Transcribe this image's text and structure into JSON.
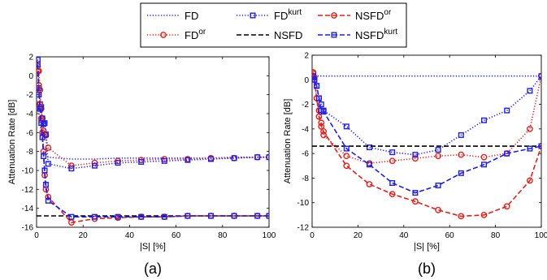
{
  "legend": {
    "items": [
      {
        "key": "fd",
        "base": "FD",
        "sup": "",
        "color": "#1f1fe0"
      },
      {
        "key": "fd_or",
        "base": "FD",
        "sup": "or",
        "color": "#e01f1f"
      },
      {
        "key": "fd_kurt",
        "base": "FD",
        "sup": "kurt",
        "color": "#1f1fe0"
      },
      {
        "key": "nsfd",
        "base": "NSFD",
        "sup": "",
        "color": "#000000"
      },
      {
        "key": "nsfd_or",
        "base": "NSFD",
        "sup": "or",
        "color": "#e01f1f"
      },
      {
        "key": "nsfd_kurt",
        "base": "NSFD",
        "sup": "kurt",
        "color": "#1f1fe0"
      }
    ]
  },
  "chart_data": [
    {
      "type": "line",
      "panel_label": "(a)",
      "xlabel": "|S| [%]",
      "ylabel": "Attenuation Rate [dB]",
      "xlim": [
        0,
        100
      ],
      "ylim": [
        -16,
        2
      ],
      "xticks": [
        0,
        20,
        40,
        60,
        80,
        100
      ],
      "yticks": [
        2,
        0,
        -2,
        -4,
        -6,
        -8,
        -10,
        -12,
        -14,
        -16
      ],
      "grid": false,
      "series": [
        {
          "name": "FD",
          "style": "dotted",
          "marker": "none",
          "color": "#1f1fe0",
          "x": [
            1,
            2,
            3,
            4,
            5,
            15,
            25,
            35,
            45,
            55,
            65,
            75,
            85,
            95,
            100
          ],
          "y": [
            -4.0,
            -6.0,
            -7.5,
            -8.3,
            -8.6,
            -8.8,
            -8.8,
            -8.7,
            -8.7,
            -8.7,
            -8.7,
            -8.7,
            -8.6,
            -8.6,
            -8.6
          ]
        },
        {
          "name": "FD^or",
          "style": "dotted",
          "marker": "circle",
          "color": "#e01f1f",
          "x": [
            0.5,
            1,
            1.5,
            2,
            2.5,
            3,
            3.5,
            4,
            5,
            15,
            25,
            35,
            45,
            55,
            65,
            75,
            85,
            95,
            100
          ],
          "y": [
            1.0,
            0.5,
            -1.5,
            -3.5,
            -4.5,
            -5.8,
            -6.2,
            -6.3,
            -7.6,
            -9.5,
            -9.2,
            -9.0,
            -8.9,
            -8.8,
            -8.8,
            -8.7,
            -8.7,
            -8.6,
            -8.6
          ]
        },
        {
          "name": "FD^kurt",
          "style": "dotted",
          "marker": "square",
          "color": "#1f1fe0",
          "x": [
            0.5,
            1,
            1.5,
            2,
            2.5,
            3,
            3.5,
            4,
            5,
            15,
            25,
            35,
            45,
            55,
            65,
            75,
            85,
            95,
            100
          ],
          "y": [
            1.7,
            -1.3,
            -3.0,
            -3.3,
            -4.5,
            -5.1,
            -5.0,
            -6.2,
            -9.3,
            -9.8,
            -9.5,
            -9.2,
            -9.1,
            -9.0,
            -8.9,
            -8.8,
            -8.7,
            -8.6,
            -8.6
          ]
        },
        {
          "name": "NSFD",
          "style": "dashed",
          "marker": "none",
          "color": "#000000",
          "x": [
            0,
            100
          ],
          "y": [
            -14.8,
            -14.8
          ]
        },
        {
          "name": "NSFD^or",
          "style": "dashed",
          "marker": "circle",
          "color": "#e01f1f",
          "x": [
            0.5,
            1,
            1.5,
            2,
            2.5,
            3,
            3.5,
            4,
            5,
            15,
            25,
            35,
            45,
            55,
            65,
            75,
            85,
            95,
            100
          ],
          "y": [
            0.5,
            -1.0,
            -3.0,
            -4.5,
            -6.0,
            -8.0,
            -10.5,
            -12.0,
            -12.8,
            -15.5,
            -15.1,
            -15.0,
            -14.9,
            -14.9,
            -14.8,
            -14.8,
            -14.8,
            -14.8,
            -14.8
          ]
        },
        {
          "name": "NSFD^kurt",
          "style": "dashed",
          "marker": "square",
          "color": "#1f1fe0",
          "x": [
            0.5,
            1,
            1.5,
            2,
            2.5,
            3,
            3.5,
            4,
            5,
            15,
            25,
            35,
            45,
            55,
            65,
            75,
            85,
            95,
            100
          ],
          "y": [
            1.2,
            -2.0,
            -3.5,
            -5.0,
            -6.5,
            -8.5,
            -10.0,
            -11.5,
            -13.2,
            -14.9,
            -14.9,
            -14.9,
            -14.9,
            -14.9,
            -14.8,
            -14.8,
            -14.8,
            -14.8,
            -14.8
          ]
        }
      ]
    },
    {
      "type": "line",
      "panel_label": "(b)",
      "xlabel": "|S| [%]",
      "ylabel": "Attenuation Rate [dB]",
      "xlim": [
        0,
        100
      ],
      "ylim": [
        -12,
        2
      ],
      "xticks": [
        0,
        20,
        40,
        60,
        80,
        100
      ],
      "yticks": [
        2,
        0,
        -2,
        -4,
        -6,
        -8,
        -10,
        -12
      ],
      "grid": false,
      "series": [
        {
          "name": "FD",
          "style": "dotted",
          "marker": "none",
          "color": "#1f1fe0",
          "x": [
            0,
            100
          ],
          "y": [
            0.3,
            0.3
          ]
        },
        {
          "name": "FD^or",
          "style": "dotted",
          "marker": "circle",
          "color": "#e01f1f",
          "x": [
            0.5,
            1,
            2,
            3,
            4,
            5,
            15,
            25,
            35,
            45,
            55,
            65,
            75,
            85,
            95,
            100
          ],
          "y": [
            0.5,
            0.2,
            -1.5,
            -2.5,
            -3.5,
            -4.5,
            -6.2,
            -6.8,
            -6.6,
            -6.4,
            -6.2,
            -6.1,
            -6.3,
            -6.0,
            -4.0,
            0.3
          ]
        },
        {
          "name": "FD^kurt",
          "style": "dotted",
          "marker": "square",
          "color": "#1f1fe0",
          "x": [
            0.5,
            1,
            2,
            3,
            4,
            5,
            15,
            25,
            35,
            45,
            55,
            65,
            75,
            85,
            95,
            100
          ],
          "y": [
            0.2,
            0.0,
            -0.5,
            -1.5,
            -2.0,
            -2.5,
            -3.8,
            -5.5,
            -5.9,
            -6.1,
            -5.7,
            -4.5,
            -3.3,
            -2.5,
            -0.9,
            0.3
          ]
        },
        {
          "name": "NSFD",
          "style": "dashed",
          "marker": "none",
          "color": "#000000",
          "x": [
            0,
            100
          ],
          "y": [
            -5.4,
            -5.4
          ]
        },
        {
          "name": "NSFD^or",
          "style": "dashed",
          "marker": "circle",
          "color": "#e01f1f",
          "x": [
            0.5,
            1,
            2,
            3,
            4,
            5,
            15,
            25,
            35,
            45,
            55,
            65,
            75,
            85,
            95,
            100
          ],
          "y": [
            0.6,
            0.0,
            -1.5,
            -3.0,
            -3.8,
            -4.2,
            -7.0,
            -8.5,
            -9.3,
            -9.9,
            -10.6,
            -11.1,
            -11.0,
            -10.3,
            -8.2,
            -5.4
          ]
        },
        {
          "name": "NSFD^kurt",
          "style": "dashed",
          "marker": "square",
          "color": "#1f1fe0",
          "x": [
            0.5,
            1,
            2,
            3,
            4,
            5,
            15,
            25,
            35,
            45,
            55,
            65,
            75,
            85,
            95,
            100
          ],
          "y": [
            0.3,
            0.0,
            -0.5,
            -1.5,
            -2.5,
            -2.6,
            -5.6,
            -6.9,
            -8.4,
            -9.2,
            -8.6,
            -7.6,
            -6.9,
            -6.0,
            -5.6,
            -5.4
          ]
        }
      ]
    }
  ]
}
